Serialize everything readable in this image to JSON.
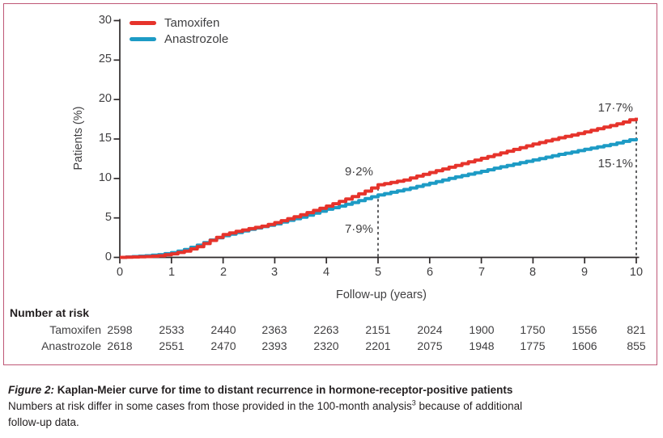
{
  "chart_data": {
    "type": "line",
    "step": true,
    "title": "",
    "xlabel": "Follow-up (years)",
    "ylabel": "Patients (%)",
    "xlim": [
      0,
      10
    ],
    "ylim": [
      0,
      30
    ],
    "x_ticks": [
      0,
      1,
      2,
      3,
      4,
      5,
      6,
      7,
      8,
      9,
      10
    ],
    "y_ticks": [
      0,
      5,
      10,
      15,
      20,
      25,
      30
    ],
    "grid": false,
    "legend_position": "top-left",
    "axis_color": "#2e2a2b",
    "reference_line_color": "#58595b",
    "x": [
      0,
      0.25,
      0.5,
      0.75,
      1,
      1.25,
      1.5,
      1.75,
      2,
      2.25,
      2.5,
      2.75,
      3,
      3.25,
      3.5,
      3.75,
      4,
      4.25,
      4.5,
      4.75,
      5,
      5.25,
      5.5,
      5.75,
      6,
      6.25,
      6.5,
      6.75,
      7,
      7.25,
      7.5,
      7.75,
      8,
      8.25,
      8.5,
      8.75,
      9,
      9.25,
      9.5,
      9.75,
      10
    ],
    "series": [
      {
        "name": "Tamoxifen",
        "color": "#e6332b",
        "y": [
          0,
          0.05,
          0.1,
          0.2,
          0.45,
          0.8,
          1.35,
          2.15,
          2.9,
          3.3,
          3.65,
          3.95,
          4.4,
          4.9,
          5.4,
          5.95,
          6.5,
          7.1,
          7.7,
          8.4,
          9.2,
          9.5,
          9.8,
          10.3,
          10.75,
          11.2,
          11.65,
          12.1,
          12.55,
          13,
          13.45,
          13.9,
          14.35,
          14.75,
          15.15,
          15.5,
          15.9,
          16.3,
          16.7,
          17.15,
          17.7
        ]
      },
      {
        "name": "Anastrozole",
        "color": "#1d9bc5",
        "y": [
          0,
          0.1,
          0.2,
          0.35,
          0.6,
          1,
          1.55,
          2.2,
          2.75,
          3.15,
          3.55,
          3.9,
          4.25,
          4.7,
          5.1,
          5.6,
          6.1,
          6.5,
          6.95,
          7.45,
          7.9,
          8.25,
          8.6,
          9,
          9.4,
          9.8,
          10.2,
          10.55,
          10.9,
          11.3,
          11.65,
          12,
          12.35,
          12.7,
          13.05,
          13.35,
          13.7,
          14,
          14.3,
          14.7,
          15.1
        ]
      }
    ],
    "annotations": [
      {
        "series": "Tamoxifen",
        "x": 5,
        "value_pct": 9.2,
        "label": "9·2%"
      },
      {
        "series": "Anastrozole",
        "x": 5,
        "value_pct": 7.9,
        "label": "7·9%"
      },
      {
        "series": "Tamoxifen",
        "x": 10,
        "value_pct": 17.7,
        "label": "17·7%"
      },
      {
        "series": "Anastrozole",
        "x": 10,
        "value_pct": 15.1,
        "label": "15·1%"
      }
    ],
    "reference_lines": [
      {
        "x": 5,
        "y_top_pct": 9.2
      },
      {
        "x": 10,
        "y_top_pct": 17.7
      }
    ]
  },
  "risk_table": {
    "title": "Number at risk",
    "rows": [
      {
        "label": "Tamoxifen",
        "values": [
          2598,
          2533,
          2440,
          2363,
          2263,
          2151,
          2024,
          1900,
          1750,
          1556,
          821
        ]
      },
      {
        "label": "Anastrozole",
        "values": [
          2618,
          2551,
          2470,
          2393,
          2320,
          2201,
          2075,
          1948,
          1775,
          1606,
          855
        ]
      }
    ]
  },
  "caption": {
    "figure_label": "Figure 2:",
    "title": " Kaplan-Meier curve for time to distant recurrence in hormone-receptor-positive patients",
    "line2_pre": "Numbers at risk differ in some cases from those provided in the 100-month analysis",
    "line2_sup": "3",
    "line2_post": " because of additional",
    "line3": "follow-up data."
  }
}
